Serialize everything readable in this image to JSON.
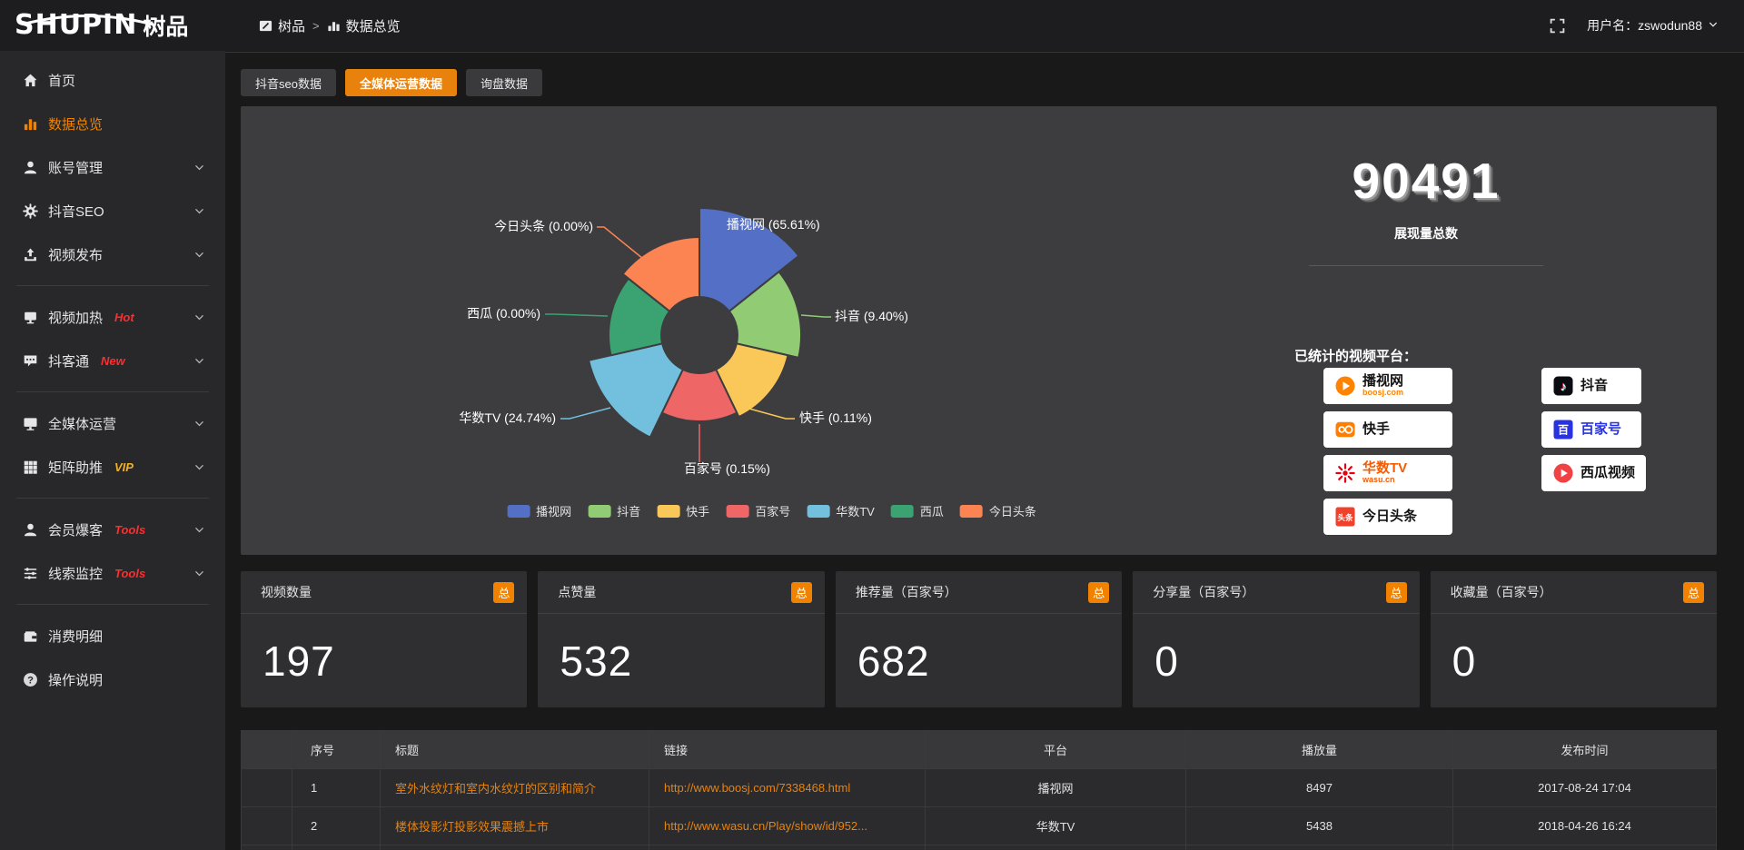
{
  "brand": {
    "logo_text": "SHUPIN",
    "logo_suffix": "树品"
  },
  "header": {
    "breadcrumb": [
      "树品",
      "数据总览"
    ],
    "separator": ">",
    "user_label": "用户名：zswodun88"
  },
  "sidebar": [
    {
      "label": "首页",
      "icon": "home"
    },
    {
      "label": "数据总览",
      "icon": "chart",
      "active": true
    },
    {
      "label": "账号管理",
      "icon": "user",
      "chevron": true
    },
    {
      "label": "抖音SEO",
      "icon": "gear",
      "chevron": true
    },
    {
      "label": "视频发布",
      "icon": "upload",
      "chevron": true,
      "divider": true
    },
    {
      "label": "视频加热",
      "icon": "heat",
      "badge": "Hot",
      "badge_color": "#ff2d2d",
      "chevron": true
    },
    {
      "label": "抖客通",
      "icon": "chat",
      "badge": "New",
      "badge_color": "#ff2d2d",
      "chevron": true,
      "divider": true
    },
    {
      "label": "全媒体运营",
      "icon": "monitor",
      "chevron": true
    },
    {
      "label": "矩阵助推",
      "icon": "grid",
      "badge": "VIP",
      "badge_color": "#efb02a",
      "chevron": true,
      "divider": true
    },
    {
      "label": "会员爆客",
      "icon": "member",
      "badge": "Tools",
      "badge_color": "#ff2d2d",
      "chevron": true
    },
    {
      "label": "线索监控",
      "icon": "sliders",
      "badge": "Tools",
      "badge_color": "#ff2d2d",
      "chevron": true,
      "divider": true
    },
    {
      "label": "消费明细",
      "icon": "wallet"
    },
    {
      "label": "操作说明",
      "icon": "question"
    }
  ],
  "tabs": [
    {
      "label": "抖音seo数据",
      "active": false
    },
    {
      "label": "全媒体运营数据",
      "active": true
    },
    {
      "label": "询盘数据",
      "active": false
    }
  ],
  "chart_data": {
    "type": "pie",
    "variant": "nightingale-rose",
    "unit": "%",
    "legend_position": "bottom",
    "items": [
      {
        "name": "播视网",
        "value": 65.61,
        "color": "#5470c6"
      },
      {
        "name": "抖音",
        "value": 9.4,
        "color": "#91cc75"
      },
      {
        "name": "快手",
        "value": 0.11,
        "color": "#fac858"
      },
      {
        "name": "百家号",
        "value": 0.15,
        "color": "#ee6666"
      },
      {
        "name": "华数TV",
        "value": 24.74,
        "color": "#73c0de"
      },
      {
        "name": "西瓜",
        "value": 0.0,
        "color": "#3ba272"
      },
      {
        "name": "今日头条",
        "value": 0.0,
        "color": "#fc8452"
      }
    ]
  },
  "overview": {
    "total_value": "90491",
    "total_label": "展现量总数",
    "platforms_title": "已统计的视频平台：",
    "platform_columns": [
      [
        {
          "name": "播视网",
          "sub": "boosj.com",
          "sub_color": "#ff8300",
          "icon": "boosj"
        },
        {
          "name": "快手",
          "icon": "kuaishou"
        },
        {
          "name": "华数TV",
          "name_color": "#f55b00",
          "sub": "wasu.cn",
          "sub_color": "#f55b00",
          "icon": "wasu"
        },
        {
          "name": "今日头条",
          "icon": "toutiao"
        }
      ],
      [
        {
          "name": "抖音",
          "icon": "douyin"
        },
        {
          "name": "百家号",
          "name_color": "#2932e1",
          "icon": "baijiahao"
        },
        {
          "name": "西瓜视频",
          "icon": "xigua"
        }
      ]
    ]
  },
  "stat_cards": [
    {
      "title": "视频数量",
      "badge": "总",
      "value": "197"
    },
    {
      "title": "点赞量",
      "badge": "总",
      "value": "532"
    },
    {
      "title": "推荐量（百家号）",
      "badge": "总",
      "value": "682"
    },
    {
      "title": "分享量（百家号）",
      "badge": "总",
      "value": "0"
    },
    {
      "title": "收藏量（百家号）",
      "badge": "总",
      "value": "0"
    }
  ],
  "table": {
    "columns": [
      "",
      "序号",
      "标题",
      "链接",
      "平台",
      "播放量",
      "发布时间"
    ],
    "rows": [
      {
        "num": "1",
        "title": "室外水纹灯和室内水纹灯的区别和简介",
        "link": "http://www.boosj.com/7338468.html",
        "platform": "播视网",
        "plays": "8497",
        "time": "2017-08-24 17:04"
      },
      {
        "num": "2",
        "title": "楼体投影灯投影效果震撼上市",
        "link": "http://www.wasu.cn/Play/show/id/952...",
        "platform": "华数TV",
        "plays": "5438",
        "time": "2018-04-26 16:24"
      },
      {
        "num": "",
        "title": "",
        "link": "",
        "platform": "",
        "plays": "",
        "time": ""
      }
    ]
  }
}
